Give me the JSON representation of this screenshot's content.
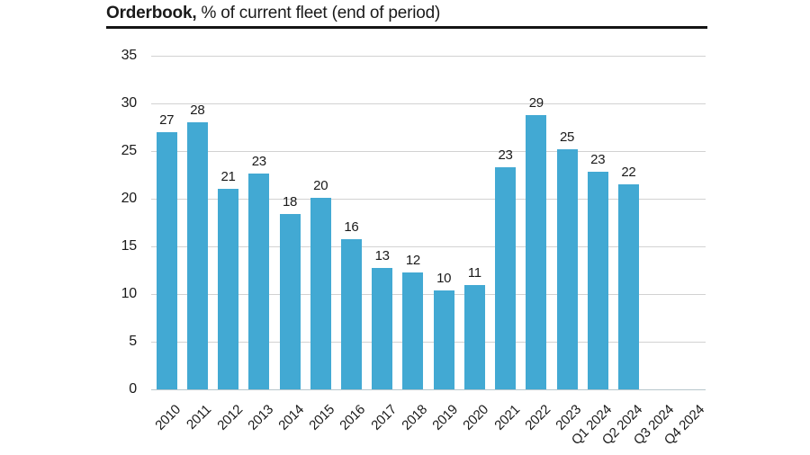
{
  "title": {
    "bold": "Orderbook,",
    "rest": " % of current fleet (end of period)"
  },
  "colors": {
    "bar": "#42a9d3",
    "grid": "#d2d2d2",
    "baseline": "#b7c6cc",
    "text": "#1a1a1a",
    "title_rule": "#141414"
  },
  "chart_data": {
    "type": "bar",
    "title": "Orderbook, % of current fleet (end of period)",
    "categories": [
      "2010",
      "2011",
      "2012",
      "2013",
      "2014",
      "2015",
      "2016",
      "2017",
      "2018",
      "2019",
      "2020",
      "2021",
      "2022",
      "2023",
      "Q1 2024",
      "Q2 2024",
      "Q3 2024",
      "Q4 2024"
    ],
    "values": [
      27,
      28,
      21,
      22.6,
      18.4,
      20.1,
      15.8,
      12.7,
      12.3,
      10.4,
      10.9,
      23.3,
      28.8,
      25.2,
      22.8,
      21.5,
      null,
      null
    ],
    "data_labels": [
      "27",
      "28",
      "21",
      "23",
      "18",
      "20",
      "16",
      "13",
      "12",
      "10",
      "11",
      "23",
      "29",
      "25",
      "23",
      "22",
      "",
      ""
    ],
    "xlabel": "",
    "ylabel": "",
    "ylim": [
      0,
      35
    ],
    "yticks": [
      0,
      5,
      10,
      15,
      20,
      25,
      30,
      35
    ],
    "grid": true,
    "legend": false
  }
}
